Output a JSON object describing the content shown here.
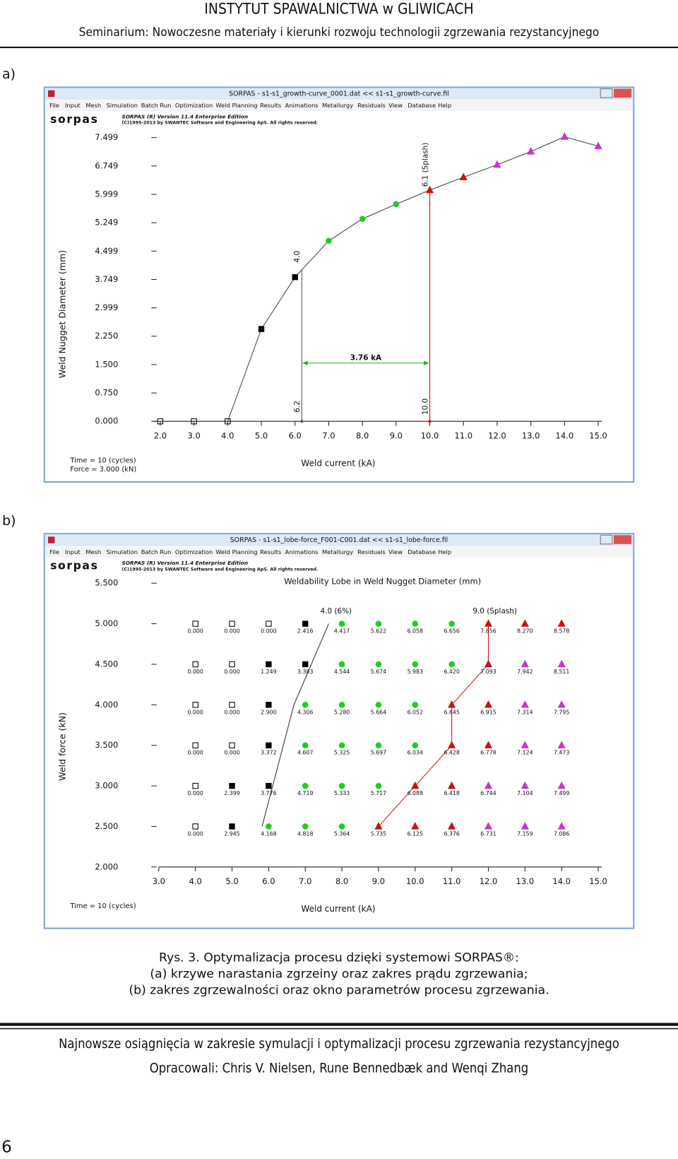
{
  "header": {
    "title": "INSTYTUT SPAWALNICTWA w GLIWICACH",
    "subtitle": "Seminarium: Nowoczesne materiały i kierunki rozwoju technologii zgrzewania rezystancyjnego"
  },
  "menu": [
    "File",
    "Input",
    "Mesh",
    "Simulation",
    "Batch Run",
    "Optimization",
    "Weld Planning",
    "Results",
    "Animations",
    "Metallurgy",
    "Residuals",
    "View",
    "Database",
    "Help"
  ],
  "logo": {
    "name": "sorpas",
    "edition": "SORPAS (R) Version 11.4  Enterprise Edition",
    "copyright": "(C)1995-2013 by SWANTEC Software and Engineering ApS. All rights reserved."
  },
  "figures": [
    {
      "label": "a)",
      "window_title": "SORPAS - s1-s1_growth-curve_0001.dat << s1-s1_growth-curve.fil",
      "chart_data": {
        "type": "line",
        "xlabel": "Weld current (kA)",
        "ylabel": "Weld Nugget Diameter (mm)",
        "notes": [
          "Time = 10 (cycles)",
          "Force = 3.000 (kN)"
        ],
        "xlim": [
          2,
          15
        ],
        "ylim": [
          0,
          7.499
        ],
        "xticks": [
          {
            "value": 2,
            "label": "2.0"
          },
          {
            "value": 3,
            "label": "3.0"
          },
          {
            "value": 4,
            "label": "4.0"
          },
          {
            "value": 5,
            "label": "5.0"
          },
          {
            "value": 6,
            "label": "6.0"
          },
          {
            "value": 7,
            "label": "7.0"
          },
          {
            "value": 8,
            "label": "8.0"
          },
          {
            "value": 9,
            "label": "9.0"
          },
          {
            "value": 10,
            "label": "10.0"
          },
          {
            "value": 11,
            "label": "11.0"
          },
          {
            "value": 12,
            "label": "12.0"
          },
          {
            "value": 13,
            "label": "13.0"
          },
          {
            "value": 14,
            "label": "14.0"
          },
          {
            "value": 15,
            "label": "15.0"
          }
        ],
        "yticks": [
          {
            "value": 0,
            "label": "0.000"
          },
          {
            "value": 0.75,
            "label": "0.750"
          },
          {
            "value": 1.5,
            "label": "1.500"
          },
          {
            "value": 2.25,
            "label": "2.250"
          },
          {
            "value": 2.999,
            "label": "2.999"
          },
          {
            "value": 3.749,
            "label": "3.749"
          },
          {
            "value": 4.499,
            "label": "4.499"
          },
          {
            "value": 5.249,
            "label": "5.249"
          },
          {
            "value": 5.999,
            "label": "5.999"
          },
          {
            "value": 6.749,
            "label": "6.749"
          },
          {
            "value": 7.499,
            "label": "7.499"
          }
        ],
        "series": [
          {
            "marker": "square",
            "color": "#000000",
            "fill": "none",
            "x": [
              2,
              3,
              4
            ],
            "values": [
              0,
              0,
              0
            ]
          },
          {
            "marker": "square",
            "color": "#000000",
            "x": [
              5,
              6
            ],
            "values": [
              2.44,
              3.81
            ]
          },
          {
            "marker": "circle",
            "color": "#22cc22",
            "x": [
              7,
              8,
              9
            ],
            "values": [
              4.77,
              5.35,
              5.74
            ]
          },
          {
            "marker": "triangle",
            "color": "#cc1111",
            "x": [
              10,
              11
            ],
            "values": [
              6.11,
              6.45
            ]
          },
          {
            "marker": "triangle",
            "color": "#cc33cc",
            "x": [
              12,
              13,
              14,
              15
            ],
            "values": [
              6.78,
              7.13,
              7.52,
              7.27
            ]
          }
        ],
        "limits": [
          {
            "x": {
              "value": 6.2,
              "label": "6.2"
            },
            "y": {
              "value": 4.0,
              "label": "4.0"
            }
          },
          {
            "x": {
              "value": 10,
              "label": "10.0"
            },
            "y": {
              "value": 6.1,
              "label": "6.1 (Splash)"
            }
          }
        ],
        "range": {
          "y": 1.54,
          "label": "3.76 kA"
        }
      }
    },
    {
      "label": "b)",
      "window_title": "SORPAS - s1-s1_lobe-force_F001-C001.dat << s1-s1_lobe-force.fil",
      "chart_data": {
        "type": "lobe",
        "title": "Weldability Lobe in Weld Nugget Diameter (mm)",
        "xlabel": "Weld current (kA)",
        "ylabel": "Weld force  (kN)",
        "notes": [
          "Time = 10 (cycles)"
        ],
        "xlim": [
          3,
          15
        ],
        "ylim": [
          2,
          5.5
        ],
        "xticks": [
          {
            "value": 3,
            "label": "3.0"
          },
          {
            "value": 4,
            "label": "4.0"
          },
          {
            "value": 5,
            "label": "5.0"
          },
          {
            "value": 6,
            "label": "6.0"
          },
          {
            "value": 7,
            "label": "7.0"
          },
          {
            "value": 8,
            "label": "8.0"
          },
          {
            "value": 9,
            "label": "9.0"
          },
          {
            "value": 10,
            "label": "10.0"
          },
          {
            "value": 11,
            "label": "11.0"
          },
          {
            "value": 12,
            "label": "12.0"
          },
          {
            "value": 13,
            "label": "13.0"
          },
          {
            "value": 14,
            "label": "14.0"
          },
          {
            "value": 15,
            "label": "15.0"
          }
        ],
        "yticks": [
          {
            "value": 2,
            "label": "2.000"
          },
          {
            "value": 2.5,
            "label": "2.500"
          },
          {
            "value": 3,
            "label": "3.000"
          },
          {
            "value": 3.5,
            "label": "3.500"
          },
          {
            "value": 4,
            "label": "4.000"
          },
          {
            "value": 4.5,
            "label": "4.500"
          },
          {
            "value": 5,
            "label": "5.000"
          },
          {
            "value": 5.5,
            "label": "5.500"
          }
        ],
        "currents": [
          4,
          5,
          6,
          7,
          8,
          9,
          10,
          11,
          12,
          13,
          14
        ],
        "rows": [
          {
            "force": 5.0,
            "values": [
              0,
              0,
              0,
              2.416,
              4.417,
              5.622,
              6.058,
              6.656,
              7.856,
              8.27,
              8.578
            ],
            "value_labels": [
              "0.000",
              "0.000",
              "0.000",
              "2.416",
              "4.417",
              "5.622",
              "6.058",
              "6.656",
              "7.856",
              "8.270",
              "8.578"
            ],
            "markers": [
              "open-square",
              "open-square",
              "open-square",
              "square",
              "circle",
              "circle",
              "circle",
              "circle",
              "triangle",
              "triangle",
              "triangle"
            ],
            "colors": [
              "#000000",
              "#000000",
              "#000000",
              "#000000",
              "#22cc22",
              "#22cc22",
              "#22cc22",
              "#22cc22",
              "#cc1111",
              "#cc1111",
              "#cc1111"
            ]
          },
          {
            "force": 4.5,
            "values": [
              0,
              0,
              1.249,
              3.383,
              4.544,
              5.674,
              5.983,
              6.42,
              7.093,
              7.942,
              8.511
            ],
            "value_labels": [
              "0.000",
              "0.000",
              "1.249",
              "3.383",
              "4.544",
              "5.674",
              "5.983",
              "6.420",
              "7.093",
              "7.942",
              "8.511"
            ],
            "markers": [
              "open-square",
              "open-square",
              "square",
              "square",
              "circle",
              "circle",
              "circle",
              "circle",
              "triangle",
              "triangle",
              "triangle"
            ],
            "colors": [
              "#000000",
              "#000000",
              "#000000",
              "#000000",
              "#22cc22",
              "#22cc22",
              "#22cc22",
              "#22cc22",
              "#cc1111",
              "#cc33cc",
              "#cc33cc"
            ]
          },
          {
            "force": 4.0,
            "values": [
              0,
              0,
              2.9,
              4.306,
              5.28,
              5.664,
              6.052,
              6.645,
              6.915,
              7.314,
              7.795
            ],
            "value_labels": [
              "0.000",
              "0.000",
              "2.900",
              "4.306",
              "5.280",
              "5.664",
              "6.052",
              "6.645",
              "6.915",
              "7.314",
              "7.795"
            ],
            "markers": [
              "open-square",
              "open-square",
              "square",
              "circle",
              "circle",
              "circle",
              "circle",
              "triangle",
              "triangle",
              "triangle",
              "triangle"
            ],
            "colors": [
              "#000000",
              "#000000",
              "#000000",
              "#22cc22",
              "#22cc22",
              "#22cc22",
              "#22cc22",
              "#cc1111",
              "#cc1111",
              "#cc33cc",
              "#cc33cc"
            ]
          },
          {
            "force": 3.5,
            "values": [
              0,
              0,
              3.372,
              4.607,
              5.325,
              5.697,
              6.034,
              6.428,
              6.778,
              7.124,
              7.473
            ],
            "value_labels": [
              "0.000",
              "0.000",
              "3.372",
              "4.607",
              "5.325",
              "5.697",
              "6.034",
              "6.428",
              "6.778",
              "7.124",
              "7.473"
            ],
            "markers": [
              "open-square",
              "open-square",
              "square",
              "circle",
              "circle",
              "circle",
              "circle",
              "triangle",
              "triangle",
              "triangle",
              "triangle"
            ],
            "colors": [
              "#000000",
              "#000000",
              "#000000",
              "#22cc22",
              "#22cc22",
              "#22cc22",
              "#22cc22",
              "#cc1111",
              "#cc1111",
              "#cc33cc",
              "#cc33cc"
            ]
          },
          {
            "force": 3.0,
            "values": [
              0,
              2.399,
              3.776,
              4.719,
              5.333,
              5.717,
              6.088,
              6.418,
              6.744,
              7.104,
              7.499
            ],
            "value_labels": [
              "0.000",
              "2.399",
              "3.776",
              "4.719",
              "5.333",
              "5.717",
              "6.088",
              "6.418",
              "6.744",
              "7.104",
              "7.499"
            ],
            "markers": [
              "open-square",
              "square",
              "square",
              "circle",
              "circle",
              "circle",
              "triangle",
              "triangle",
              "triangle",
              "triangle",
              "triangle"
            ],
            "colors": [
              "#000000",
              "#000000",
              "#000000",
              "#22cc22",
              "#22cc22",
              "#22cc22",
              "#cc1111",
              "#cc1111",
              "#cc33cc",
              "#cc33cc",
              "#cc33cc"
            ]
          },
          {
            "force": 2.5,
            "values": [
              0,
              2.945,
              4.168,
              4.818,
              5.364,
              5.735,
              6.125,
              6.376,
              6.731,
              7.159,
              7.086
            ],
            "value_labels": [
              "0.000",
              "2.945",
              "4.168",
              "4.818",
              "5.364",
              "5.735",
              "6.125",
              "6.376",
              "6.731",
              "7.159",
              "7.086"
            ],
            "markers": [
              "open-square",
              "square",
              "circle",
              "circle",
              "circle",
              "triangle",
              "triangle",
              "triangle",
              "triangle",
              "triangle",
              "triangle"
            ],
            "colors": [
              "#000000",
              "#000000",
              "#22cc22",
              "#22cc22",
              "#22cc22",
              "#cc1111",
              "#cc1111",
              "#cc1111",
              "#cc33cc",
              "#cc33cc",
              "#cc33cc"
            ]
          }
        ],
        "lower_line": {
          "label": "4.0 (6%)",
          "color": "#333333",
          "x": [
            5.82,
            6.69,
            7.64
          ],
          "y": [
            2.5,
            4.0,
            5.0
          ]
        },
        "upper_line": {
          "label": "9.0 (Splash)",
          "color": "#cc1111",
          "x": [
            9,
            10,
            11,
            11,
            12,
            12
          ],
          "y": [
            2.5,
            3.0,
            3.5,
            4.0,
            4.5,
            5.0
          ]
        }
      }
    }
  ],
  "caption": [
    "Rys. 3. Optymalizacja procesu dzięki systemowi SORPAS®:",
    "(a) krzywe narastania zgrzeiny oraz zakres prądu zgrzewania;",
    "(b) zakres zgrzewalności oraz okno parametrów procesu zgrzewania."
  ],
  "footer": {
    "title": "Najnowsze osiągnięcia w zakresie symulacji i optymalizacji procesu zgrzewania rezystancyjnego",
    "authors": "Opracowali: Chris V. Nielsen, Rune Bennedbæk and Wenqi Zhang",
    "page": "6"
  }
}
